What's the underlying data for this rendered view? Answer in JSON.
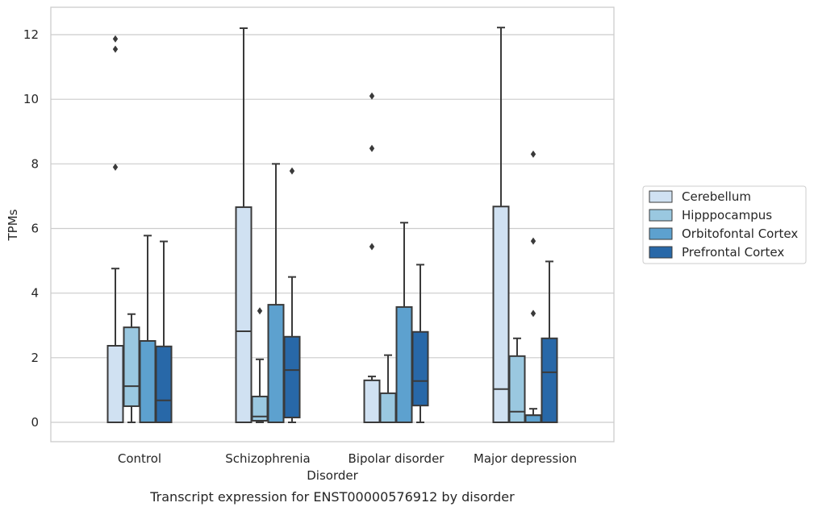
{
  "chart_data": {
    "type": "box",
    "title": "",
    "caption": "Transcript expression for ENST00000576912 by disorder",
    "xlabel": "Disorder",
    "ylabel": "TPMs",
    "ylim": [
      -0.6,
      12.85
    ],
    "yticks": [
      "0",
      "2",
      "4",
      "6",
      "8",
      "10",
      "12"
    ],
    "grid": "horizontal",
    "legend_position": "right",
    "categories": [
      "Control",
      "Schizophrenia",
      "Bipolar disorder",
      "Major depression"
    ],
    "series": [
      {
        "name": "Cerebellum",
        "color": "#d0e1f2",
        "boxes": [
          {
            "whislo": 0,
            "q1": 0,
            "med": 0,
            "q3": 2.37,
            "whishi": 4.76,
            "fliers": [
              7.9,
              11.55,
              11.87
            ]
          },
          {
            "whislo": 0,
            "q1": 0,
            "med": 2.82,
            "q3": 6.66,
            "whishi": 12.2,
            "fliers": []
          },
          {
            "whislo": 0,
            "q1": 0,
            "med": 0,
            "q3": 1.3,
            "whishi": 1.42,
            "fliers": [
              5.44,
              8.48,
              10.1
            ]
          },
          {
            "whislo": 0,
            "q1": 0,
            "med": 1.03,
            "q3": 6.68,
            "whishi": 12.22,
            "fliers": []
          }
        ]
      },
      {
        "name": "Hipppocampus",
        "color": "#9ac8e0",
        "boxes": [
          {
            "whislo": 0,
            "q1": 0.5,
            "med": 1.12,
            "q3": 2.94,
            "whishi": 3.35,
            "fliers": []
          },
          {
            "whislo": 0,
            "q1": 0.05,
            "med": 0.18,
            "q3": 0.8,
            "whishi": 1.95,
            "fliers": [
              3.45
            ]
          },
          {
            "whislo": 0,
            "q1": 0,
            "med": 0,
            "q3": 0.9,
            "whishi": 2.08,
            "fliers": []
          },
          {
            "whislo": 0,
            "q1": 0,
            "med": 0.33,
            "q3": 2.05,
            "whishi": 2.6,
            "fliers": []
          }
        ]
      },
      {
        "name": "Orbitofontal Cortex",
        "color": "#5da1cf",
        "boxes": [
          {
            "whislo": 0,
            "q1": 0,
            "med": 0,
            "q3": 2.52,
            "whishi": 5.78,
            "fliers": []
          },
          {
            "whislo": 0,
            "q1": 0,
            "med": 0,
            "q3": 3.64,
            "whishi": 8.0,
            "fliers": []
          },
          {
            "whislo": 0,
            "q1": 0,
            "med": 0,
            "q3": 3.57,
            "whishi": 6.18,
            "fliers": []
          },
          {
            "whislo": 0,
            "q1": 0,
            "med": 0.22,
            "q3": 0.22,
            "whishi": 0.42,
            "fliers": [
              3.37,
              5.61,
              8.3
            ]
          }
        ]
      },
      {
        "name": "Prefrontal Cortex",
        "color": "#2868a8",
        "boxes": [
          {
            "whislo": 0,
            "q1": 0,
            "med": 0.68,
            "q3": 2.35,
            "whishi": 5.6,
            "fliers": []
          },
          {
            "whislo": 0,
            "q1": 0.15,
            "med": 1.62,
            "q3": 2.65,
            "whishi": 4.5,
            "fliers": [
              7.78
            ]
          },
          {
            "whislo": 0,
            "q1": 0.52,
            "med": 1.28,
            "q3": 2.8,
            "whishi": 4.88,
            "fliers": []
          },
          {
            "whislo": 0,
            "q1": 0,
            "med": 1.55,
            "q3": 2.6,
            "whishi": 4.98,
            "fliers": []
          }
        ]
      }
    ]
  }
}
